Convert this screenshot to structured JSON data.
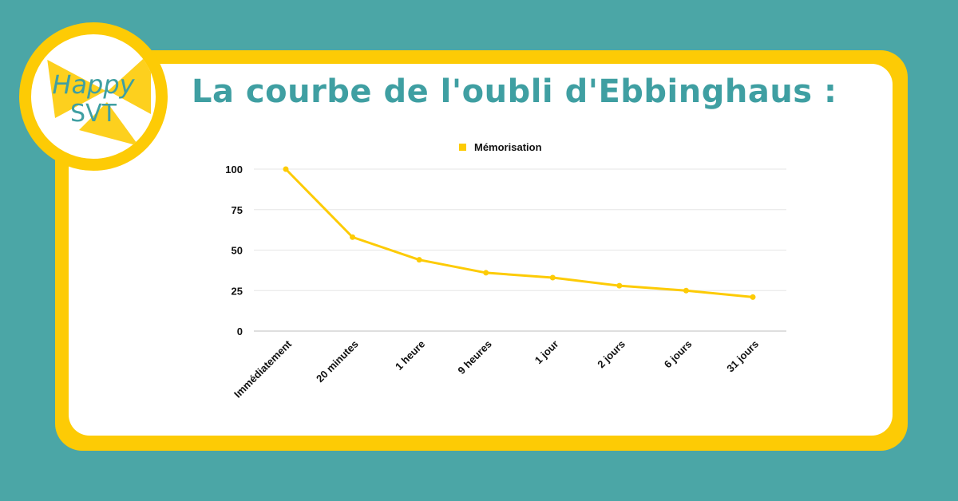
{
  "logo": {
    "line1": "Happy",
    "line2": "SVT"
  },
  "title": "La courbe de l'oubli d'Ebbinghaus :",
  "colors": {
    "background": "#4ba6a6",
    "frame": "#fdcb05",
    "title": "#3f9fa2",
    "series": "#fdcb05",
    "grid": "#e6e6e6"
  },
  "chart_data": {
    "type": "line",
    "title": "La courbe de l'oubli d'Ebbinghaus :",
    "categories": [
      "Immédiatement",
      "20 minutes",
      "1 heure",
      "9 heures",
      "1 jour",
      "2 jours",
      "6 jours",
      "31 jours"
    ],
    "series": [
      {
        "name": "Mémorisation",
        "values": [
          100,
          58,
          44,
          36,
          33,
          28,
          25,
          21
        ]
      }
    ],
    "yticks": [
      0,
      25,
      50,
      75,
      100
    ],
    "ylim": [
      0,
      100
    ],
    "xlabel": "",
    "ylabel": "",
    "grid": true,
    "legend": "top-center"
  }
}
